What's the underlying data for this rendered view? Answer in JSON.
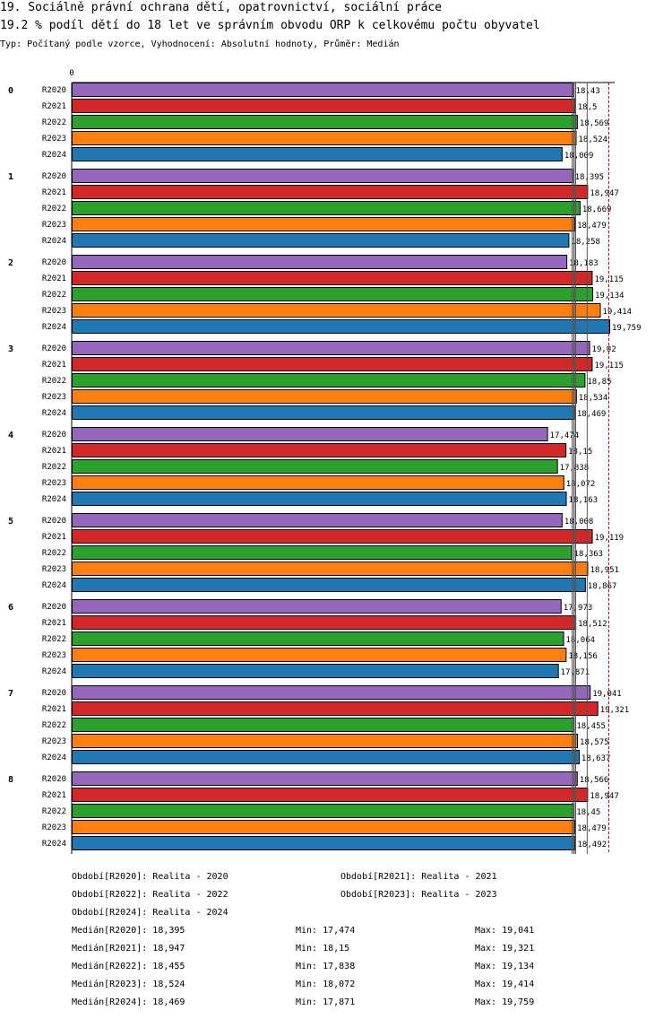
{
  "header": {
    "title": "19. Sociálně právní ochrana dětí, opatrovnictví, sociální práce",
    "subtitle": "19.2 % podíl dětí do 18 let ve správním obvodu ORP k celkovému počtu obyvatel",
    "info": "Typ: Počítaný podle vzorce, Vyhodnocení: Absolutní hodnoty, Průměr: Medián"
  },
  "chart_data": {
    "type": "bar",
    "orientation": "horizontal",
    "axis_zero_label": "0",
    "xlim": [
      0,
      19.759
    ],
    "groups": [
      "0",
      "1",
      "2",
      "3",
      "4",
      "5",
      "6",
      "7",
      "8"
    ],
    "series": [
      {
        "name": "R2020",
        "color": "#9467bd",
        "values": [
          18.43,
          18.395,
          18.183,
          19.02,
          17.474,
          18.008,
          17.973,
          19.041,
          18.566
        ],
        "labels": [
          "18,43",
          "18,395",
          "18,183",
          "19,02",
          "17,474",
          "18,008",
          "17,973",
          "19,041",
          "18,566"
        ]
      },
      {
        "name": "R2021",
        "color": "#d62728",
        "values": [
          18.5,
          18.947,
          19.115,
          19.115,
          18.15,
          19.119,
          18.512,
          19.321,
          18.947
        ],
        "labels": [
          "18,5",
          "18,947",
          "19,115",
          "19,115",
          "18,15",
          "19,119",
          "18,512",
          "19,321",
          "18,947"
        ]
      },
      {
        "name": "R2022",
        "color": "#2ca02c",
        "values": [
          18.569,
          18.669,
          19.134,
          18.85,
          17.838,
          18.363,
          18.064,
          18.455,
          18.45
        ],
        "labels": [
          "18,569",
          "18,669",
          "19,134",
          "18,85",
          "17,838",
          "18,363",
          "18,064",
          "18,455",
          "18,45"
        ]
      },
      {
        "name": "R2023",
        "color": "#ff7f0e",
        "values": [
          18.524,
          18.479,
          19.414,
          18.534,
          18.072,
          18.951,
          18.156,
          18.575,
          18.479
        ],
        "labels": [
          "18,524",
          "18,479",
          "19,414",
          "18,534",
          "18,072",
          "18,951",
          "18,156",
          "18,575",
          "18,479"
        ]
      },
      {
        "name": "R2024",
        "color": "#1f77b4",
        "values": [
          18.009,
          18.258,
          19.759,
          18.469,
          18.163,
          18.867,
          17.871,
          18.637,
          18.492
        ],
        "labels": [
          "18,009",
          "18,258",
          "19,759",
          "18,469",
          "18,163",
          "18,867",
          "17,871",
          "18,637",
          "18,492"
        ]
      }
    ],
    "reference_lines": [
      {
        "series": "R2020",
        "kind": "median",
        "value": 18.395
      },
      {
        "series": "R2021",
        "kind": "median",
        "value": 18.947
      },
      {
        "series": "R2022",
        "kind": "median",
        "value": 18.455
      },
      {
        "series": "R2023",
        "kind": "median",
        "value": 18.524
      },
      {
        "series": "R2024",
        "kind": "median",
        "value": 18.469
      }
    ]
  },
  "legend": {
    "periods": [
      "Období[R2020]: Realita - 2020",
      "Období[R2021]: Realita - 2021",
      "Období[R2022]: Realita - 2022",
      "Období[R2023]: Realita - 2023",
      "Období[R2024]: Realita - 2024"
    ],
    "stats": [
      {
        "median": "Medián[R2020]: 18,395",
        "min": "Min: 17,474",
        "max": "Max: 19,041"
      },
      {
        "median": "Medián[R2021]: 18,947",
        "min": "Min: 18,15",
        "max": "Max: 19,321"
      },
      {
        "median": "Medián[R2022]: 18,455",
        "min": "Min: 17,838",
        "max": "Max: 19,134"
      },
      {
        "median": "Medián[R2023]: 18,524",
        "min": "Min: 18,072",
        "max": "Max: 19,414"
      },
      {
        "median": "Medián[R2024]: 18,469",
        "min": "Min: 17,871",
        "max": "Max: 19,759"
      }
    ]
  }
}
